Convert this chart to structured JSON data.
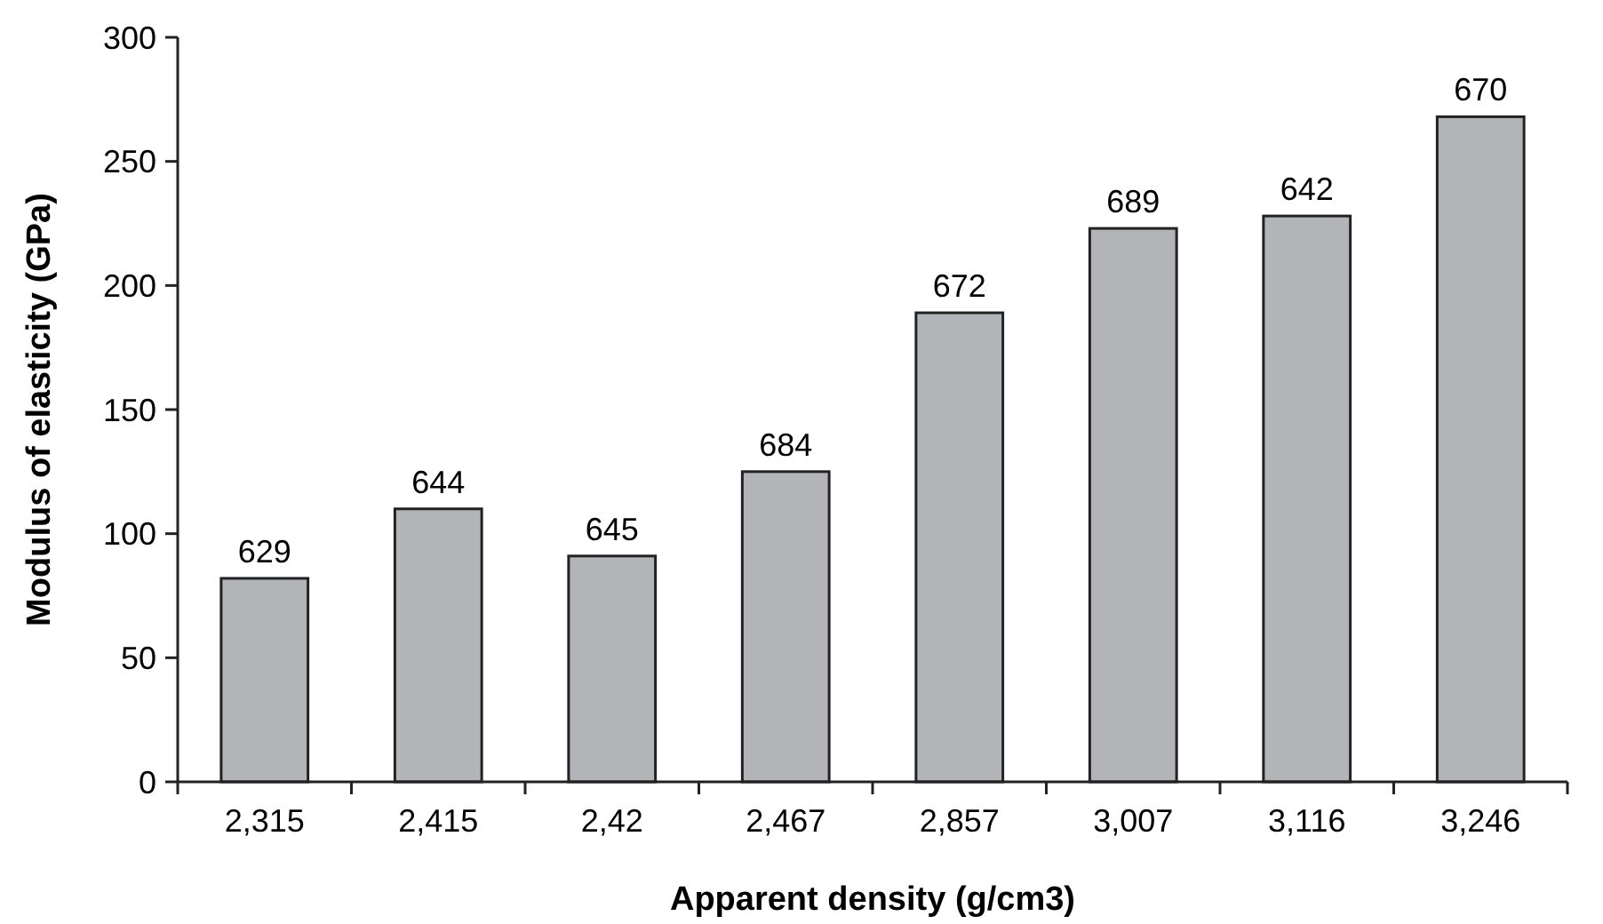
{
  "chart_data": {
    "type": "bar",
    "xlabel": "Apparent density (g/cm3)",
    "ylabel": "Modulus of elasticity (GPa)",
    "categories": [
      "2,315",
      "2,415",
      "2,42",
      "2,467",
      "2,857",
      "3,007",
      "3,116",
      "3,246"
    ],
    "values": [
      82,
      110,
      91,
      125,
      189,
      223,
      228,
      268
    ],
    "annotations": [
      {
        "text": "629",
        "x": "2,315",
        "y": 82
      },
      {
        "text": "644",
        "x": "2,415",
        "y": 110
      },
      {
        "text": "645",
        "x": "2,42",
        "y": 91
      },
      {
        "text": "684",
        "x": "2,467",
        "y": 125
      },
      {
        "text": "672",
        "x": "2,857",
        "y": 189
      },
      {
        "text": "689",
        "x": "3,007",
        "y": 223
      },
      {
        "text": "642",
        "x": "3,116",
        "y": 228
      },
      {
        "text": "670",
        "x": "3,246",
        "y": 268
      }
    ],
    "color": "#b3b4b8",
    "ylim": [
      0,
      300
    ],
    "yticks": [
      0,
      50,
      100,
      150,
      200,
      250,
      300
    ],
    "grid": false
  }
}
